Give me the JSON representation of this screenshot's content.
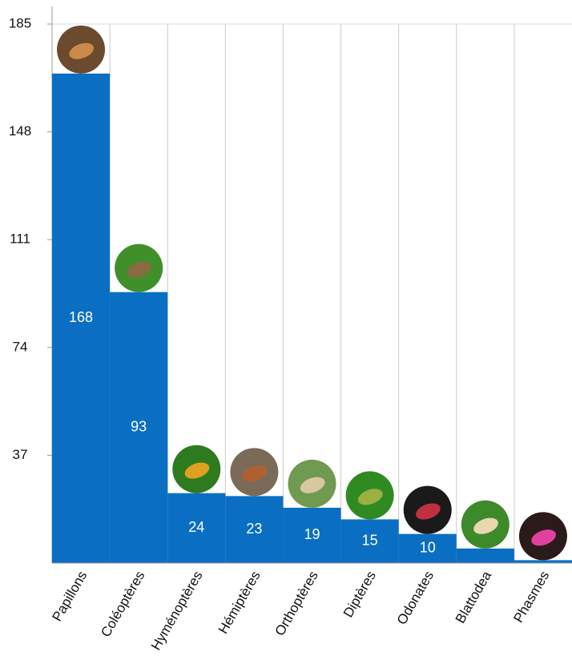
{
  "chart_data": {
    "type": "bar",
    "categories": [
      "Papillons",
      "Coléoptères",
      "Hyménoptères",
      "Hémiptères",
      "Orthoptères",
      "Diptères",
      "Odonates",
      "Blattodea",
      "Phasmes"
    ],
    "values": [
      168,
      93,
      24,
      23,
      19,
      15,
      10,
      5,
      1
    ],
    "color": "#0a6fc2",
    "ylim": [
      0,
      185
    ],
    "yticks": [
      37,
      74,
      111,
      148,
      185
    ],
    "grid": true
  }
}
